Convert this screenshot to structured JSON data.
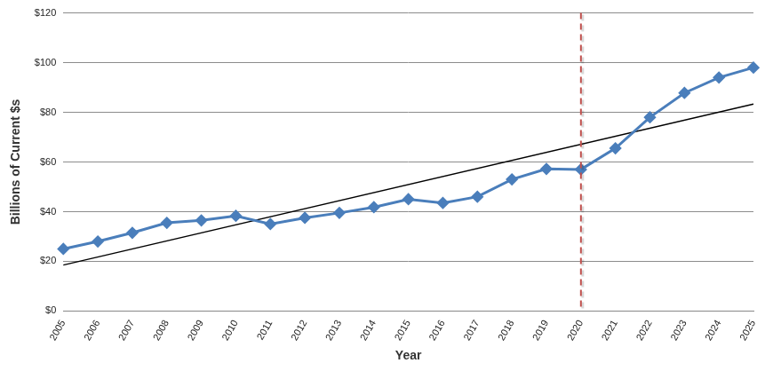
{
  "chart_data": {
    "type": "line",
    "x_label": "Year",
    "y_label": "Billions of Current $s",
    "categories": [
      "2005",
      "2006",
      "2007",
      "2008",
      "2009",
      "2010",
      "2011",
      "2012",
      "2013",
      "2014",
      "2015",
      "2016",
      "2017",
      "2018",
      "2019",
      "2020",
      "2021",
      "2022",
      "2023",
      "2024",
      "2025"
    ],
    "series": [
      {
        "color": "#4a7ebb",
        "marker": "diamond",
        "line_style": "solid",
        "values": [
          25,
          28,
          31.5,
          35.5,
          36.5,
          38.3,
          35,
          37.5,
          39.5,
          41.8,
          45,
          43.5,
          46,
          53,
          57.2,
          57,
          65.5,
          78,
          87.8,
          94,
          98
        ]
      },
      {
        "color": "#000000",
        "marker": "none",
        "line_style": "solid",
        "values": [
          18.5,
          null,
          null,
          null,
          null,
          null,
          null,
          null,
          null,
          null,
          null,
          null,
          null,
          null,
          null,
          null,
          null,
          null,
          null,
          null,
          83.3
        ]
      }
    ],
    "vertical_lines": [
      {
        "x": "2020",
        "color": "#c0504d",
        "line_style": "dashed"
      }
    ],
    "ylim": [
      0,
      120
    ],
    "yticks": [
      {
        "value": 0,
        "label": "$0"
      },
      {
        "value": 20,
        "label": "$20"
      },
      {
        "value": 40,
        "label": "$40"
      },
      {
        "value": 60,
        "label": "$60"
      },
      {
        "value": 80,
        "label": "$80"
      },
      {
        "value": 100,
        "label": "$100"
      },
      {
        "value": 120,
        "label": "$120"
      }
    ],
    "grid": true
  }
}
